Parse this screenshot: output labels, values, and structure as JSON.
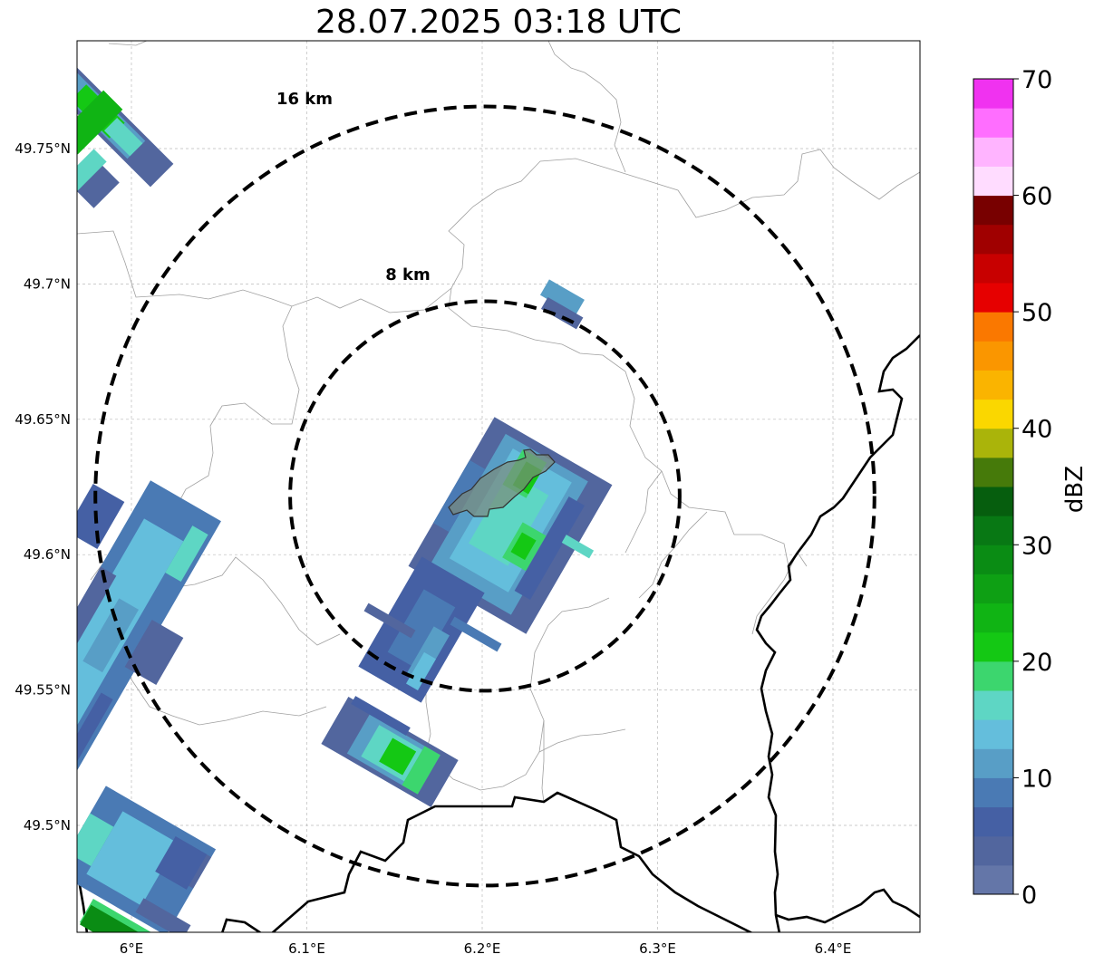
{
  "title": "28.07.2025 03:18 UTC",
  "map": {
    "lon_ticks": [
      {
        "value": 6.0,
        "label": "6°E"
      },
      {
        "value": 6.1,
        "label": "6.1°E"
      },
      {
        "value": 6.2,
        "label": "6.2°E"
      },
      {
        "value": 6.3,
        "label": "6.3°E"
      },
      {
        "value": 6.4,
        "label": "6.4°E"
      }
    ],
    "lat_ticks": [
      {
        "value": 49.75,
        "label": "49.75°N"
      },
      {
        "value": 49.7,
        "label": "49.7°N"
      },
      {
        "value": 49.65,
        "label": "49.65°N"
      },
      {
        "value": 49.6,
        "label": "49.6°N"
      },
      {
        "value": 49.55,
        "label": "49.55°N"
      },
      {
        "value": 49.5,
        "label": "49.5°N"
      }
    ],
    "grid": true,
    "range_rings": [
      {
        "label": "8 km",
        "radius_km": 8
      },
      {
        "label": "16 km",
        "radius_km": 16
      }
    ],
    "center": {
      "lon": 6.2,
      "lat": 49.622
    }
  },
  "colorbar": {
    "label": "dBZ",
    "ticks": [
      "0",
      "10",
      "20",
      "30",
      "40",
      "50",
      "60",
      "70"
    ],
    "colors": [
      "#6476a8",
      "#52669e",
      "#4560a4",
      "#4a7ab4",
      "#589ec6",
      "#64bedc",
      "#5ed6c4",
      "#3cd66e",
      "#14c814",
      "#10b414",
      "#0ea014",
      "#0a8c14",
      "#087814",
      "#065e0e",
      "#467a0a",
      "#aab40a",
      "#fad700",
      "#fab400",
      "#fa9600",
      "#fa7800",
      "#e60000",
      "#c80000",
      "#a00000",
      "#780000",
      "#ffdcff",
      "#ffb4ff",
      "#ff6eff",
      "#f032f0"
    ]
  }
}
